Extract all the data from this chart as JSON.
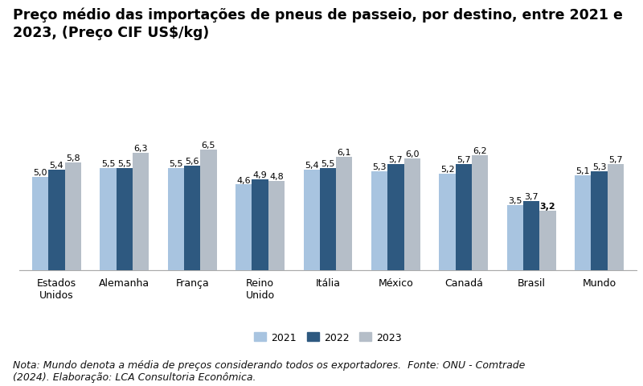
{
  "title_line1": "Preço médio das importações de pneus de passeio, por destino, entre 2021 e",
  "title_line2": "2023, (Preço CIF US$/kg)",
  "categories": [
    "Estados\nUnidos",
    "Alemanha",
    "França",
    "Reino\nUnido",
    "Itália",
    "México",
    "Canadá",
    "Brasil",
    "Mundo"
  ],
  "values_2021": [
    5.0,
    5.5,
    5.5,
    4.6,
    5.4,
    5.3,
    5.2,
    3.5,
    5.1
  ],
  "values_2022": [
    5.4,
    5.5,
    5.6,
    4.9,
    5.5,
    5.7,
    5.7,
    3.7,
    5.3
  ],
  "values_2023": [
    5.8,
    6.3,
    6.5,
    4.8,
    6.1,
    6.0,
    6.2,
    3.2,
    5.7
  ],
  "labels_2021": [
    "5,0",
    "5,5",
    "5,5",
    "4,6",
    "5,4",
    "5,3",
    "5,2",
    "3,5",
    "5,1"
  ],
  "labels_2022": [
    "5,4",
    "5,5",
    "5,6",
    "4,9",
    "5,5",
    "5,7",
    "5,7",
    "3,7",
    "5,3"
  ],
  "labels_2023": [
    "5,8",
    "6,3",
    "6,5",
    "4,8",
    "6,1",
    "6,0",
    "6,2",
    "3,2",
    "5,7"
  ],
  "color_2021": "#a8c4e0",
  "color_2022": "#2e5980",
  "color_2023": "#b5bec8",
  "legend_labels": [
    "2021",
    "2022",
    "2023"
  ],
  "note": "Nota: Mundo denota a média de preços considerando todos os exportadores.  Fonte: ONU - Comtrade\n(2024). Elaboração: LCA Consultoria Econômica.",
  "ylim": [
    0,
    7.5
  ],
  "bar_width": 0.24,
  "background_color": "#ffffff",
  "title_fontsize": 12.5,
  "label_fontsize": 8,
  "note_fontsize": 9,
  "tick_fontsize": 9,
  "brasil_2023_bold": true
}
